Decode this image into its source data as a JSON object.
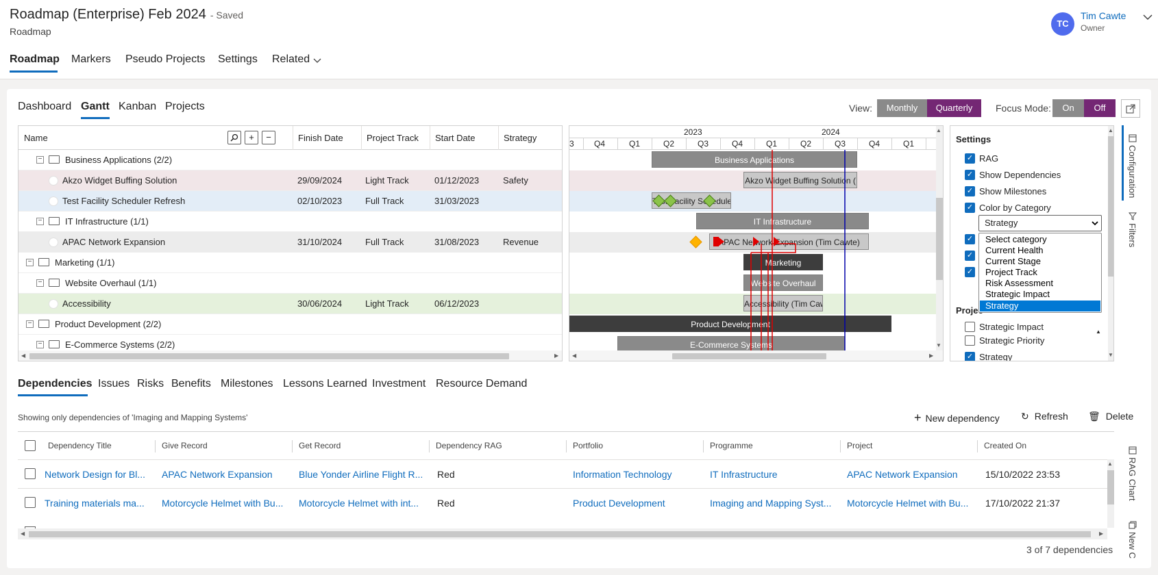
{
  "header": {
    "title": "Roadmap (Enterprise) Feb 2024",
    "saved": "- Saved",
    "subtitle": "Roadmap",
    "user_initials": "TC",
    "user_name": "Tim Cawte",
    "user_role": "Owner"
  },
  "nav": {
    "roadmap": "Roadmap",
    "markers": "Markers",
    "pseudo": "Pseudo Projects",
    "settings": "Settings",
    "related": "Related"
  },
  "subtabs": {
    "dashboard": "Dashboard",
    "gantt": "Gantt",
    "kanban": "Kanban",
    "projects": "Projects"
  },
  "controls": {
    "view_label": "View:",
    "monthly": "Monthly",
    "quarterly": "Quarterly",
    "focus_label": "Focus Mode:",
    "on": "On",
    "off": "Off"
  },
  "grid": {
    "columns": {
      "name": "Name",
      "finish": "Finish Date",
      "track": "Project Track",
      "start": "Start Date",
      "strategy": "Strategy"
    },
    "rows": [
      {
        "name": "Business Applications (2/2)",
        "finish": "",
        "track": "",
        "start": "",
        "strategy": ""
      },
      {
        "name": "Akzo Widget Buffing Solution",
        "finish": "29/09/2024",
        "track": "Light Track",
        "start": "01/12/2023",
        "strategy": "Safety"
      },
      {
        "name": "Test Facility Scheduler Refresh",
        "finish": "02/10/2023",
        "track": "Full Track",
        "start": "31/03/2023",
        "strategy": ""
      },
      {
        "name": "IT Infrastructure (1/1)",
        "finish": "",
        "track": "",
        "start": "",
        "strategy": ""
      },
      {
        "name": "APAC Network Expansion",
        "finish": "31/10/2024",
        "track": "Full Track",
        "start": "31/08/2023",
        "strategy": "Revenue"
      },
      {
        "name": "Marketing (1/1)",
        "finish": "",
        "track": "",
        "start": "",
        "strategy": ""
      },
      {
        "name": "Website Overhaul (1/1)",
        "finish": "",
        "track": "",
        "start": "",
        "strategy": ""
      },
      {
        "name": "Accessibility",
        "finish": "30/06/2024",
        "track": "Light Track",
        "start": "06/12/2023",
        "strategy": ""
      },
      {
        "name": "Product Development (2/2)",
        "finish": "",
        "track": "",
        "start": "",
        "strategy": ""
      },
      {
        "name": "E-Commerce Systems (2/2)",
        "finish": "",
        "track": "",
        "start": "",
        "strategy": ""
      }
    ]
  },
  "timeline": {
    "years": [
      "2023",
      "2024"
    ],
    "quarters": [
      "3",
      "Q4",
      "Q1",
      "Q2",
      "Q3",
      "Q4",
      "Q1",
      "Q2",
      "Q3",
      "Q4",
      "Q1"
    ],
    "bars": {
      "business_applications": "Business Applications",
      "akzo": "Akzo Widget Buffing Solution (",
      "test_facility": "Test Facility Scheduler",
      "it_infrastructure": "IT Infrastructure",
      "apac": "APAC Network Expansion (Tim Cawte)",
      "marketing": "Marketing",
      "website": "Website Overhaul",
      "accessibility": "Accessibility (Tim Caw",
      "product_development": "Product Development",
      "ecommerce": "E-Commerce Systems"
    }
  },
  "settings": {
    "title": "Settings",
    "items": [
      "RAG",
      "Show Dependencies",
      "Show Milestones",
      "Color by Category"
    ],
    "select_value": "Strategy",
    "options": [
      "Select category",
      "Current Health",
      "Current Stage",
      "Project Track",
      "Risk Assessment",
      "Strategic Impact",
      "Strategy"
    ],
    "section": "Projec",
    "lower_items": [
      "Strategic Impact",
      "Strategic Priority",
      "Strategy"
    ],
    "side_configuration": "Configuration",
    "side_filters": "Filters"
  },
  "bottom_tabs": {
    "dependencies": "Dependencies",
    "issues": "Issues",
    "risks": "Risks",
    "benefits": "Benefits",
    "milestones": "Milestones",
    "lessons": "Lessons Learned",
    "investment": "Investment",
    "resource": "Resource Demand"
  },
  "dependencies": {
    "note": "Showing only dependencies of 'Imaging and Mapping Systems'",
    "new": "New dependency",
    "refresh": "Refresh",
    "delete": "Delete",
    "columns": {
      "title": "Dependency Title",
      "give": "Give Record",
      "get": "Get Record",
      "rag": "Dependency RAG",
      "portfolio": "Portfolio",
      "programme": "Programme",
      "project": "Project",
      "created": "Created On"
    },
    "rows": [
      {
        "title": "Network Design for Bl...",
        "give": "APAC Network Expansion",
        "get": "Blue Yonder Airline Flight R...",
        "rag": "Red",
        "portfolio": "Information Technology",
        "programme": "IT Infrastructure",
        "project": "APAC Network Expansion",
        "created": "15/10/2022 23:53"
      },
      {
        "title": "Training materials ma...",
        "give": "Motorcycle Helmet with Bu...",
        "get": "Motorcycle Helmet with int...",
        "rag": "Red",
        "portfolio": "Product Development",
        "programme": "Imaging and Mapping Syst...",
        "project": "Motorcycle Helmet with Bu...",
        "created": "17/10/2022 21:37"
      }
    ],
    "count": "3 of 7 dependencies",
    "side_rag": "RAG Chart",
    "side_new": "New C"
  },
  "colors": {
    "accent": "#0f6cbd",
    "purple": "#742774",
    "dependency": "#e00000",
    "today": "#0000aa"
  }
}
